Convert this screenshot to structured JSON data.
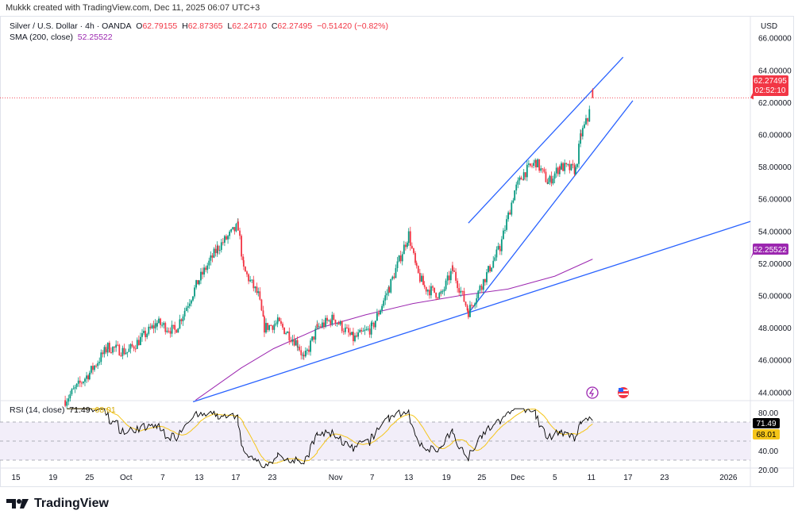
{
  "credit": "Mukkk created with TradingView.com, Dec 11, 2025 06:07 UTC+3",
  "legend": {
    "symbol": "Silver / U.S. Dollar · 4h · OANDA",
    "o_label": "O",
    "o": "62.79155",
    "h_label": "H",
    "h": "62.87365",
    "l_label": "L",
    "l": "62.24710",
    "c_label": "C",
    "c": "62.27495",
    "change": "−0.51420 (−0.82%)",
    "sma_label": "SMA (200, close)",
    "sma_value": "52.25522"
  },
  "rsi_legend": {
    "label": "RSI (14, close)",
    "rsi": "71.49",
    "rsi_ma": "68.01"
  },
  "footer": {
    "brand": "TradingView"
  },
  "colors": {
    "up": "#089981",
    "down": "#f23645",
    "sma": "#9c27b0",
    "trend": "#2962ff",
    "rsi": "#000000",
    "rsi_ma": "#f5c518",
    "rsi_band": "#f2eef9"
  },
  "chart_data": {
    "type": "candlestick",
    "title": "Silver / U.S. Dollar · 4h · OANDA",
    "currency_label": "USD",
    "x_unit": "time index (axis ticks below)",
    "x_ticks": [
      {
        "label": "15",
        "x": 0
      },
      {
        "label": "19",
        "x": 6.1
      },
      {
        "label": "25",
        "x": 12.1
      },
      {
        "label": "Oct",
        "x": 18.1
      },
      {
        "label": "7",
        "x": 24.1
      },
      {
        "label": "13",
        "x": 30.1
      },
      {
        "label": "17",
        "x": 36.1
      },
      {
        "label": "23",
        "x": 42.1
      },
      {
        "label": "Nov",
        "x": 52.5
      },
      {
        "label": "7",
        "x": 58.5
      },
      {
        "label": "13",
        "x": 64.5
      },
      {
        "label": "19",
        "x": 70.7
      },
      {
        "label": "25",
        "x": 76.5
      },
      {
        "label": "Dec",
        "x": 82.4
      },
      {
        "label": "5",
        "x": 88.5
      },
      {
        "label": "11",
        "x": 94.5
      },
      {
        "label": "17",
        "x": 100.5
      },
      {
        "label": "23",
        "x": 106.5
      },
      {
        "label": "2026",
        "x": 117
      }
    ],
    "y_ticks": [
      "66.00000",
      "64.00000",
      "62.00000",
      "60.00000",
      "58.00000",
      "56.00000",
      "54.00000",
      "52.00000",
      "50.00000",
      "48.00000",
      "46.00000",
      "44.00000"
    ],
    "ylim": [
      43.2,
      67
    ],
    "last_price": {
      "value": 62.27495,
      "label": "62.27495",
      "countdown": "02:52:10"
    },
    "sma_tag": {
      "value": 52.25522,
      "label": "52.25522"
    },
    "close_path": [
      [
        8.1,
        43.5
      ],
      [
        12.1,
        45.2
      ],
      [
        15.1,
        46.8
      ],
      [
        18.3,
        46.5
      ],
      [
        23.2,
        48.3
      ],
      [
        26.1,
        47.8
      ],
      [
        30.1,
        51
      ],
      [
        33.2,
        53
      ],
      [
        36.5,
        54.3
      ],
      [
        37.4,
        51.6
      ],
      [
        39.8,
        50
      ],
      [
        40.8,
        48
      ],
      [
        43.0,
        48.3
      ],
      [
        46.3,
        47.0
      ],
      [
        47.3,
        46.0
      ],
      [
        49.5,
        48
      ],
      [
        52.2,
        48.6
      ],
      [
        55.4,
        47.3
      ],
      [
        58.5,
        48
      ],
      [
        61.3,
        50.5
      ],
      [
        64.5,
        53.8
      ],
      [
        65.8,
        51.5
      ],
      [
        67.1,
        50.5
      ],
      [
        69.8,
        50
      ],
      [
        71.7,
        51.6
      ],
      [
        74.3,
        49.0
      ],
      [
        76.5,
        50.7
      ],
      [
        79.5,
        53
      ],
      [
        81.9,
        56.5
      ],
      [
        83.4,
        57.6
      ],
      [
        85.4,
        58.3
      ],
      [
        87.4,
        57
      ],
      [
        89.3,
        58
      ],
      [
        91.9,
        57.8
      ],
      [
        92.8,
        60
      ],
      [
        93.9,
        61
      ],
      [
        94.7,
        62.27
      ]
    ],
    "sma_200": [
      [
        29.5,
        43.5
      ],
      [
        37,
        45.5
      ],
      [
        42.3,
        46.7
      ],
      [
        50,
        48.0
      ],
      [
        57.4,
        48.8
      ],
      [
        65.2,
        49.5
      ],
      [
        73,
        50.0
      ],
      [
        80.8,
        50.4
      ],
      [
        88.5,
        51.2
      ],
      [
        94.7,
        52.26
      ]
    ],
    "trend_lines": [
      {
        "name": "long-support",
        "from": [
          29.1,
          43.4
        ],
        "to": [
          120.6,
          54.6
        ]
      },
      {
        "name": "channel-upper",
        "from": [
          74.3,
          54.5
        ],
        "to": [
          99.7,
          64.8
        ]
      },
      {
        "name": "channel-lower",
        "from": [
          74.3,
          48.9
        ],
        "to": [
          101.3,
          62.1
        ]
      }
    ],
    "rsi": {
      "period": 14,
      "current": 71.49,
      "ma_current": 68.01,
      "y_ticks": [
        "80.00",
        "40.00",
        "20.00"
      ],
      "bands": [
        70,
        50,
        30
      ],
      "ylim": [
        20,
        85
      ]
    }
  }
}
